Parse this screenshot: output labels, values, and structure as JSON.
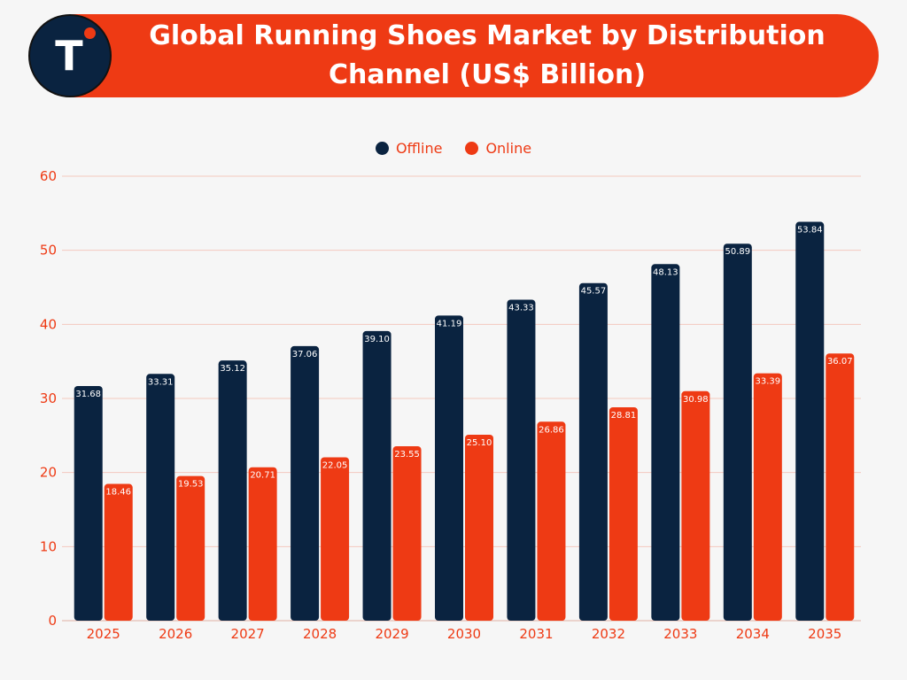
{
  "header": {
    "title": "Global Running Shoes Market by Distribution Channel (US$ Billion)",
    "logo_letter": "T"
  },
  "colors": {
    "banner": "#ee3a14",
    "offline": "#0a2340",
    "online": "#ee3a14",
    "grid": "#f4c9bf",
    "axis_text": "#ee3a14"
  },
  "chart_data": {
    "type": "bar",
    "title": "Global Running Shoes Market by Distribution Channel (US$ Billion)",
    "xlabel": "",
    "ylabel": "",
    "ylim": [
      0,
      60
    ],
    "yticks": [
      0,
      10,
      20,
      30,
      40,
      50,
      60
    ],
    "grid": true,
    "legend_position": "top-center",
    "categories": [
      "2025",
      "2026",
      "2027",
      "2028",
      "2029",
      "2030",
      "2031",
      "2032",
      "2033",
      "2034",
      "2035"
    ],
    "series": [
      {
        "name": "Offline",
        "color": "#0a2340",
        "values": [
          31.68,
          33.31,
          35.12,
          37.06,
          39.1,
          41.19,
          43.33,
          45.57,
          48.13,
          50.89,
          53.84
        ],
        "labels": [
          "31.68",
          "33.31",
          "35.12",
          "37.06",
          "39.10",
          "41.19",
          "43.33",
          "45.57",
          "48.13",
          "50.89",
          "53.84"
        ]
      },
      {
        "name": "Online",
        "color": "#ee3a14",
        "values": [
          18.46,
          19.53,
          20.71,
          22.05,
          23.55,
          25.1,
          26.86,
          28.81,
          30.98,
          33.39,
          36.07
        ],
        "labels": [
          "18.46",
          "19.53",
          "20.71",
          "22.05",
          "23.55",
          "25.10",
          "26.86",
          "28.81",
          "30.98",
          "33.39",
          "36.07"
        ]
      }
    ]
  }
}
